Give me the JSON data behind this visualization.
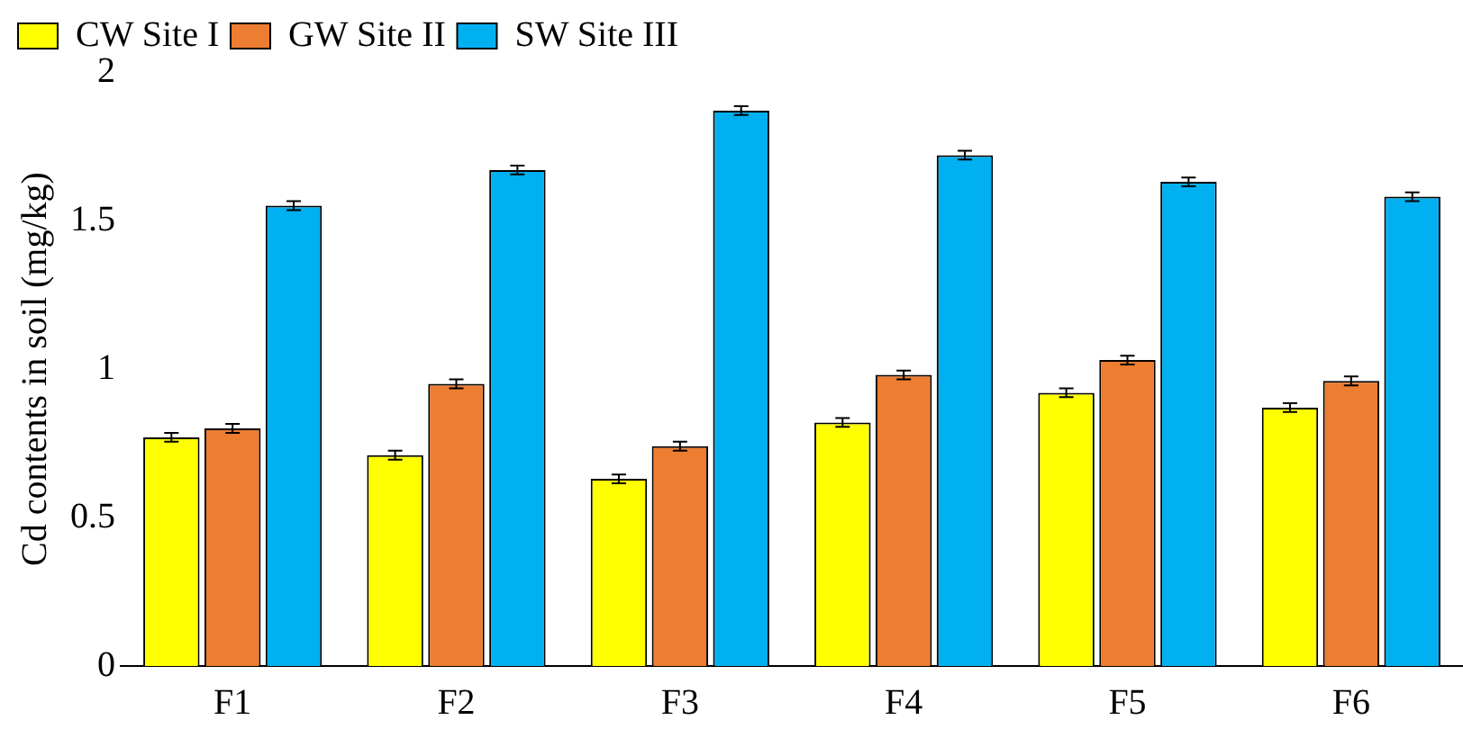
{
  "chart_data": {
    "type": "bar",
    "ylabel": "Cd contents in soil (mg/kg)",
    "categories": [
      "F1",
      "F2",
      "F3",
      "F4",
      "F5",
      "F6"
    ],
    "series": [
      {
        "name": "CW Site I",
        "color": "#ffff00",
        "values": [
          0.77,
          0.71,
          0.63,
          0.82,
          0.92,
          0.87
        ],
        "errors": [
          0.015,
          0.015,
          0.015,
          0.015,
          0.015,
          0.015
        ]
      },
      {
        "name": "GW Site II",
        "color": "#ed7d31",
        "values": [
          0.8,
          0.95,
          0.74,
          0.98,
          1.03,
          0.96
        ],
        "errors": [
          0.015,
          0.015,
          0.015,
          0.015,
          0.015,
          0.015
        ]
      },
      {
        "name": "SW Site III",
        "color": "#00b0f0",
        "values": [
          1.55,
          1.67,
          1.87,
          1.72,
          1.63,
          1.58
        ],
        "errors": [
          0.015,
          0.015,
          0.015,
          0.015,
          0.015,
          0.015
        ]
      }
    ],
    "ylim": [
      0,
      2
    ],
    "yticks": [
      0,
      0.5,
      1,
      1.5,
      2
    ],
    "grid": false,
    "legend": "top"
  }
}
